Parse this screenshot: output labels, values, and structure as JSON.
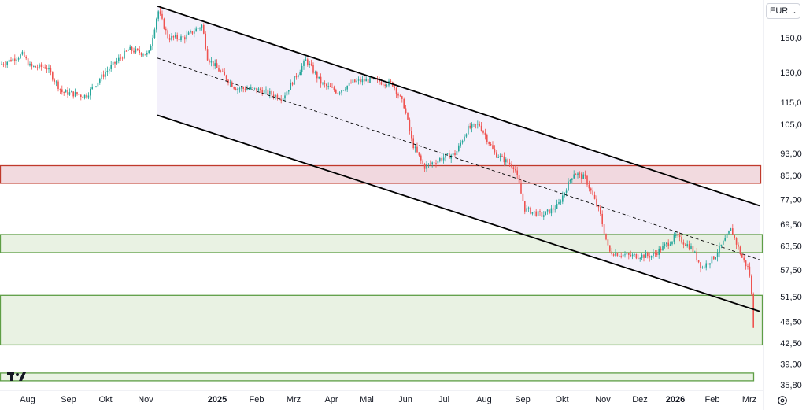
{
  "currency": {
    "label": "EUR"
  },
  "colors": {
    "up": "#26a69a",
    "down": "#ef5350",
    "channel_line": "#000000",
    "channel_fill": "#f3f0fb",
    "zone_red_fill": "#f0d3d9",
    "zone_red_stroke": "#c0392b",
    "zone_green_fill": "#e3efdc",
    "zone_green_stroke": "#5e9e45"
  },
  "icons": {
    "logo": "tradingview-logo",
    "settings": "gear-icon",
    "currency_toggle": "chevron-down-icon"
  },
  "chart_data": {
    "type": "candlestick",
    "y_scale": "log",
    "ylim": [
      35.8,
      172
    ],
    "y_ticks": [
      "150,0",
      "130,0",
      "115,0",
      "105,0",
      "93,00",
      "85,00",
      "77,00",
      "69,50",
      "63,50",
      "57,50",
      "51,50",
      "46,50",
      "42,50",
      "39,00",
      "35,80"
    ],
    "y_tick_values": [
      150,
      130,
      115,
      105,
      93,
      85,
      77,
      69.5,
      63.5,
      57.5,
      51.5,
      46.5,
      42.5,
      39,
      35.8
    ],
    "x_ticks": [
      "Aug",
      "Sep",
      "Okt",
      "Nov",
      "2025",
      "Feb",
      "Mrz",
      "Apr",
      "Mai",
      "Jun",
      "Jul",
      "Aug",
      "Sep",
      "Okt",
      "Nov",
      "Dez",
      "2026",
      "Feb",
      "Mrz"
    ],
    "x_tick_bold": [
      false,
      false,
      false,
      false,
      true,
      false,
      false,
      false,
      false,
      false,
      false,
      false,
      false,
      false,
      false,
      false,
      true,
      false,
      false
    ],
    "price_path_anchors": [
      {
        "x": 0,
        "y": 134
      },
      {
        "x": 30,
        "y": 140
      },
      {
        "x": 40,
        "y": 133
      },
      {
        "x": 60,
        "y": 133
      },
      {
        "x": 80,
        "y": 120
      },
      {
        "x": 110,
        "y": 118
      },
      {
        "x": 135,
        "y": 130
      },
      {
        "x": 165,
        "y": 143
      },
      {
        "x": 190,
        "y": 140
      },
      {
        "x": 202,
        "y": 168
      },
      {
        "x": 215,
        "y": 150
      },
      {
        "x": 235,
        "y": 150
      },
      {
        "x": 258,
        "y": 158
      },
      {
        "x": 265,
        "y": 138
      },
      {
        "x": 300,
        "y": 122
      },
      {
        "x": 330,
        "y": 121
      },
      {
        "x": 360,
        "y": 117
      },
      {
        "x": 390,
        "y": 137
      },
      {
        "x": 410,
        "y": 124
      },
      {
        "x": 430,
        "y": 120
      },
      {
        "x": 450,
        "y": 125
      },
      {
        "x": 470,
        "y": 126
      },
      {
        "x": 500,
        "y": 124
      },
      {
        "x": 515,
        "y": 113
      },
      {
        "x": 525,
        "y": 97
      },
      {
        "x": 540,
        "y": 88
      },
      {
        "x": 560,
        "y": 91
      },
      {
        "x": 580,
        "y": 93
      },
      {
        "x": 595,
        "y": 103
      },
      {
        "x": 610,
        "y": 105
      },
      {
        "x": 630,
        "y": 93
      },
      {
        "x": 655,
        "y": 88
      },
      {
        "x": 668,
        "y": 74
      },
      {
        "x": 690,
        "y": 72
      },
      {
        "x": 710,
        "y": 75
      },
      {
        "x": 730,
        "y": 86
      },
      {
        "x": 745,
        "y": 84
      },
      {
        "x": 763,
        "y": 73
      },
      {
        "x": 775,
        "y": 62
      },
      {
        "x": 800,
        "y": 61
      },
      {
        "x": 830,
        "y": 61
      },
      {
        "x": 860,
        "y": 66
      },
      {
        "x": 880,
        "y": 63
      },
      {
        "x": 893,
        "y": 58
      },
      {
        "x": 910,
        "y": 61
      },
      {
        "x": 930,
        "y": 68
      },
      {
        "x": 945,
        "y": 60
      },
      {
        "x": 953,
        "y": 57.5
      },
      {
        "x": 957,
        "y": 50
      },
      {
        "x": 959,
        "y": 44
      }
    ],
    "channel": {
      "upper": [
        {
          "x": 200,
          "y": 171
        },
        {
          "x": 965,
          "y": 75
        }
      ],
      "middle": [
        {
          "x": 200,
          "y": 138
        },
        {
          "x": 965,
          "y": 60
        }
      ],
      "lower": [
        {
          "x": 200,
          "y": 109
        },
        {
          "x": 965,
          "y": 48.5
        }
      ]
    },
    "zones": [
      {
        "color": "red",
        "y_low": 82.3,
        "y_high": 88.5,
        "x_end": 966
      },
      {
        "color": "green",
        "y_low": 61.8,
        "y_high": 66.6,
        "x_end": 968
      },
      {
        "color": "green",
        "y_low": 42.2,
        "y_high": 51.8,
        "x_end": 968
      },
      {
        "color": "green",
        "y_low": 36.4,
        "y_high": 37.6,
        "x_end": 957
      }
    ]
  }
}
